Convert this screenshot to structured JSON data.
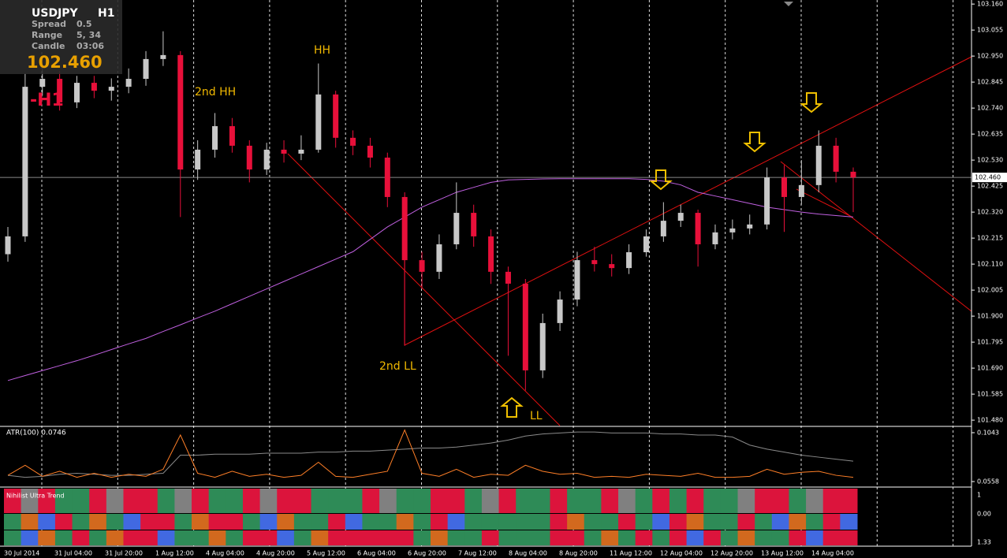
{
  "chart_data": {
    "type": "candlestick",
    "symbol": "USDJPY",
    "timeframe": "H1",
    "timeframe_marker": "-H1",
    "info_panel": {
      "spread_label": "Spread",
      "spread": "0.5",
      "range_label": "Range",
      "range": "5, 34",
      "candle_label": "Candle",
      "candle": "03:06",
      "price": "102.460"
    },
    "annotations": [
      "HH",
      "2nd HH",
      "2nd LL",
      "LL"
    ],
    "x_labels": [
      "30 Jul 2014",
      "31 Jul 04:00",
      "31 Jul 20:00",
      "1 Aug 12:00",
      "4 Aug 04:00",
      "4 Aug 20:00",
      "5 Aug 12:00",
      "6 Aug 04:00",
      "6 Aug 20:00",
      "7 Aug 12:00",
      "8 Aug 04:00",
      "8 Aug 20:00",
      "11 Aug 12:00",
      "12 Aug 04:00",
      "12 Aug 20:00",
      "13 Aug 12:00",
      "14 Aug 04:00"
    ],
    "ylim": [
      101.458,
      103.17
    ],
    "yticks": [
      {
        "value": 103.16,
        "label": "103.160"
      },
      103.055,
      {
        "value": 102.95,
        "label": "102.950"
      },
      102.845,
      {
        "value": 102.74,
        "label": "102.740"
      },
      102.635,
      {
        "value": 102.53,
        "label": "102.530"
      },
      102.425,
      {
        "value": 102.32,
        "label": "102.320"
      },
      102.215,
      {
        "value": 102.11,
        "label": "102.110"
      },
      102.005,
      {
        "value": 101.9,
        "label": "101.900"
      },
      101.795,
      {
        "value": 101.69,
        "label": "101.690"
      },
      101.585,
      {
        "value": 101.48,
        "label": "101.480"
      }
    ],
    "current_price": {
      "value": 102.46,
      "label": "102.460"
    },
    "up_color": "#c8c8c8",
    "down_color": "#e8103a",
    "open": [
      102.15,
      102.222,
      102.826,
      102.858,
      102.763,
      102.842,
      102.81,
      102.826,
      102.858,
      102.938,
      102.954,
      102.492,
      102.572,
      102.667,
      102.588,
      102.492,
      102.572,
      102.556,
      102.572,
      102.795,
      102.62,
      102.588,
      102.54,
      102.381,
      102.126,
      102.079,
      102.19,
      102.317,
      102.222,
      102.079,
      102.031,
      101.681,
      101.872,
      101.967,
      102.126,
      102.11,
      102.094,
      102.158,
      102.222,
      102.285,
      102.317,
      102.19,
      102.238,
      102.254,
      102.27,
      102.46,
      102.381,
      102.429,
      102.588,
      102.483
    ],
    "high": [
      102.26,
      102.88,
      102.9,
      102.89,
      102.87,
      102.87,
      102.86,
      102.9,
      102.97,
      103.05,
      102.97,
      102.61,
      102.72,
      102.7,
      102.61,
      102.6,
      102.61,
      102.63,
      102.92,
      102.81,
      102.65,
      102.62,
      102.56,
      102.4,
      102.16,
      102.23,
      102.44,
      102.35,
      102.25,
      102.1,
      102.05,
      101.91,
      102.0,
      102.16,
      102.18,
      102.15,
      102.19,
      102.25,
      102.36,
      102.35,
      102.33,
      102.27,
      102.29,
      102.31,
      102.5,
      102.51,
      102.53,
      102.65,
      102.62,
      102.5
    ],
    "low": [
      102.12,
      102.2,
      102.79,
      102.73,
      102.74,
      102.78,
      102.77,
      102.8,
      102.83,
      102.91,
      102.3,
      102.45,
      102.54,
      102.56,
      102.44,
      102.47,
      102.52,
      102.53,
      102.56,
      102.58,
      102.55,
      102.5,
      102.34,
      101.78,
      102.01,
      102.05,
      102.17,
      102.18,
      102.03,
      101.74,
      101.6,
      101.65,
      101.84,
      101.94,
      102.08,
      102.06,
      102.07,
      102.14,
      102.2,
      102.26,
      102.1,
      102.17,
      102.21,
      102.23,
      102.25,
      102.24,
      102.35,
      102.4,
      102.44,
      102.32
    ],
    "close": [
      102.222,
      102.826,
      102.858,
      102.763,
      102.842,
      102.81,
      102.826,
      102.858,
      102.938,
      102.954,
      102.492,
      102.572,
      102.667,
      102.588,
      102.492,
      102.572,
      102.556,
      102.572,
      102.795,
      102.62,
      102.588,
      102.54,
      102.381,
      102.126,
      102.079,
      102.19,
      102.317,
      102.222,
      102.079,
      102.031,
      101.681,
      101.872,
      101.967,
      102.126,
      102.11,
      102.094,
      102.158,
      102.222,
      102.285,
      102.317,
      102.19,
      102.238,
      102.254,
      102.27,
      102.46,
      102.381,
      102.429,
      102.588,
      102.483,
      102.46
    ],
    "ma": {
      "color": "#c060e0",
      "values": [
        101.64,
        101.66,
        101.68,
        101.7,
        101.72,
        101.742,
        101.765,
        101.788,
        101.81,
        101.838,
        101.865,
        101.893,
        101.92,
        101.95,
        101.98,
        102.01,
        102.04,
        102.07,
        102.1,
        102.13,
        102.16,
        102.21,
        102.26,
        102.3,
        102.34,
        102.37,
        102.4,
        102.42,
        102.44,
        102.45,
        102.452,
        102.454,
        102.455,
        102.455,
        102.455,
        102.455,
        102.455,
        102.452,
        102.445,
        102.43,
        102.4,
        102.385,
        102.37,
        102.355,
        102.34,
        102.33,
        102.32,
        102.312,
        102.306,
        102.3
      ]
    },
    "atr": {
      "label": "ATR(100) 0.0746",
      "ylim": [
        0.0511,
        0.109
      ],
      "yticks": [
        0.1043,
        0.0558
      ],
      "series": [
        {
          "color": "#8a8a8a",
          "values": [
            0.062,
            0.06,
            0.061,
            0.063,
            0.064,
            0.063,
            0.062,
            0.062,
            0.063,
            0.064,
            0.082,
            0.082,
            0.083,
            0.083,
            0.083,
            0.084,
            0.084,
            0.084,
            0.085,
            0.085,
            0.086,
            0.086,
            0.087,
            0.088,
            0.089,
            0.089,
            0.09,
            0.092,
            0.094,
            0.097,
            0.101,
            0.103,
            0.104,
            0.105,
            0.105,
            0.104,
            0.104,
            0.104,
            0.103,
            0.103,
            0.102,
            0.102,
            0.1,
            0.092,
            0.088,
            0.085,
            0.082,
            0.08,
            0.078,
            0.076
          ]
        },
        {
          "color": "#ff7f27",
          "values": [
            0.062,
            0.072,
            0.061,
            0.066,
            0.06,
            0.064,
            0.06,
            0.063,
            0.061,
            0.068,
            0.102,
            0.064,
            0.06,
            0.066,
            0.061,
            0.063,
            0.06,
            0.062,
            0.075,
            0.061,
            0.06,
            0.063,
            0.066,
            0.107,
            0.064,
            0.061,
            0.068,
            0.06,
            0.063,
            0.062,
            0.072,
            0.066,
            0.063,
            0.064,
            0.06,
            0.061,
            0.06,
            0.063,
            0.062,
            0.061,
            0.064,
            0.06,
            0.06,
            0.061,
            0.068,
            0.063,
            0.065,
            0.066,
            0.062,
            0.06
          ]
        }
      ]
    },
    "trend_panel": {
      "label": "Nihilist Ultra Trend",
      "ticks": [
        "1",
        "0.00",
        "1.33"
      ],
      "palette": {
        "R": "#dc143c",
        "G": "#2e8b57",
        "Y": "#808080",
        "B": "#4169e1",
        "O": "#d2691e"
      },
      "rows": [
        "RYRGGRYRRGYRGGRYRRGGGRYGGRRGYRGGRGGRYGRGRGGYRRGYRR",
        "GOBRGOGBRRGORRGBOGGRBGGOGRBGGGGGROGGRGBROGGRGBOGRB",
        "GBOGRGORRBGGOGRRBGORRRRRGOGGRGGGRRGOGRGRBRGOGGRBRR"
      ]
    }
  }
}
